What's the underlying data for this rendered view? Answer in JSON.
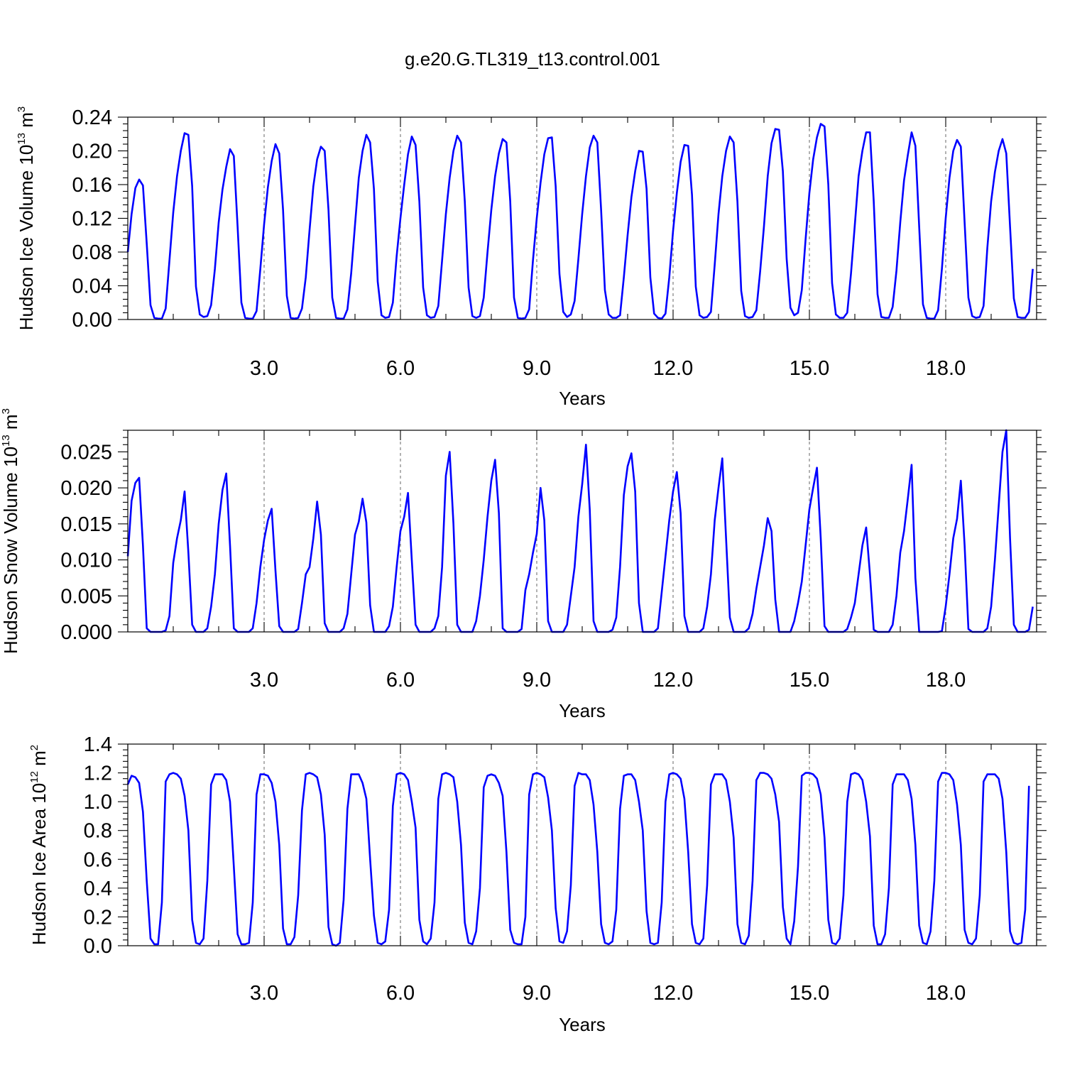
{
  "title": "g.e20.G.TL319_t13.control.001",
  "chart_data": [
    {
      "type": "line",
      "xlabel": "Years",
      "ylabel": {
        "text": "Hudson Ice Volume 10",
        "exp": "13",
        "unit": " m",
        "unit_exp": "3"
      },
      "xlim": [
        0.0,
        20.0
      ],
      "ylim": [
        0.0,
        0.24
      ],
      "xticks": [
        3.0,
        6.0,
        9.0,
        12.0,
        15.0,
        18.0
      ],
      "xtick_labels": [
        "3.0",
        "6.0",
        "9.0",
        "12.0",
        "15.0",
        "18.0"
      ],
      "yticks": [
        0.0,
        0.04,
        0.08,
        0.12,
        0.16,
        0.2,
        0.24
      ],
      "ytick_labels": [
        "0.00",
        "0.04",
        "0.08",
        "0.12",
        "0.16",
        "0.20",
        "0.24"
      ],
      "grid": "dashed vertical at major x ticks",
      "series_color": "#0000ff",
      "x_step": 0.08333,
      "values": [
        0.08,
        0.125,
        0.156,
        0.166,
        0.159,
        0.09,
        0.017,
        0.002,
        0.001,
        0.001,
        0.013,
        0.07,
        0.127,
        0.17,
        0.2,
        0.221,
        0.219,
        0.158,
        0.039,
        0.006,
        0.003,
        0.004,
        0.017,
        0.06,
        0.115,
        0.154,
        0.181,
        0.202,
        0.194,
        0.11,
        0.02,
        0.002,
        0.001,
        0.001,
        0.01,
        0.06,
        0.113,
        0.157,
        0.188,
        0.208,
        0.197,
        0.13,
        0.028,
        0.002,
        0.001,
        0.002,
        0.013,
        0.05,
        0.106,
        0.158,
        0.19,
        0.205,
        0.2,
        0.13,
        0.026,
        0.002,
        0.001,
        0.001,
        0.012,
        0.055,
        0.112,
        0.168,
        0.2,
        0.219,
        0.21,
        0.155,
        0.045,
        0.005,
        0.002,
        0.003,
        0.02,
        0.075,
        0.12,
        0.16,
        0.196,
        0.217,
        0.207,
        0.14,
        0.038,
        0.005,
        0.002,
        0.003,
        0.016,
        0.07,
        0.125,
        0.168,
        0.2,
        0.218,
        0.21,
        0.14,
        0.038,
        0.004,
        0.002,
        0.004,
        0.026,
        0.08,
        0.13,
        0.17,
        0.197,
        0.214,
        0.21,
        0.14,
        0.026,
        0.002,
        0.001,
        0.002,
        0.012,
        0.07,
        0.12,
        0.162,
        0.196,
        0.215,
        0.216,
        0.158,
        0.054,
        0.009,
        0.003,
        0.006,
        0.022,
        0.072,
        0.125,
        0.17,
        0.204,
        0.218,
        0.21,
        0.13,
        0.035,
        0.006,
        0.002,
        0.002,
        0.005,
        0.05,
        0.1,
        0.145,
        0.176,
        0.2,
        0.199,
        0.155,
        0.05,
        0.007,
        0.002,
        0.001,
        0.007,
        0.05,
        0.105,
        0.15,
        0.187,
        0.207,
        0.206,
        0.148,
        0.039,
        0.005,
        0.002,
        0.003,
        0.009,
        0.065,
        0.125,
        0.17,
        0.2,
        0.217,
        0.21,
        0.14,
        0.034,
        0.004,
        0.002,
        0.003,
        0.011,
        0.057,
        0.11,
        0.17,
        0.209,
        0.226,
        0.225,
        0.176,
        0.072,
        0.014,
        0.005,
        0.008,
        0.035,
        0.095,
        0.15,
        0.19,
        0.216,
        0.232,
        0.229,
        0.16,
        0.043,
        0.006,
        0.002,
        0.002,
        0.008,
        0.055,
        0.112,
        0.17,
        0.2,
        0.222,
        0.222,
        0.14,
        0.03,
        0.003,
        0.002,
        0.002,
        0.015,
        0.058,
        0.115,
        0.165,
        0.195,
        0.222,
        0.206,
        0.11,
        0.018,
        0.002,
        0.001,
        0.001,
        0.011,
        0.06,
        0.12,
        0.168,
        0.2,
        0.213,
        0.205,
        0.115,
        0.026,
        0.004,
        0.002,
        0.003,
        0.016,
        0.085,
        0.14,
        0.175,
        0.2,
        0.214,
        0.197,
        0.11,
        0.025,
        0.003,
        0.002,
        0.002,
        0.009,
        0.06
      ]
    },
    {
      "type": "line",
      "xlabel": "Years",
      "ylabel": {
        "text": "Hudson Snow Volume 10",
        "exp": "13",
        "unit": " m",
        "unit_exp": "3"
      },
      "xlim": [
        0.0,
        20.0
      ],
      "ylim": [
        0.0,
        0.028
      ],
      "xticks": [
        3.0,
        6.0,
        9.0,
        12.0,
        15.0,
        18.0
      ],
      "xtick_labels": [
        "3.0",
        "6.0",
        "9.0",
        "12.0",
        "15.0",
        "18.0"
      ],
      "yticks": [
        0.0,
        0.005,
        0.01,
        0.015,
        0.02,
        0.025
      ],
      "ytick_labels": [
        "0.000",
        "0.005",
        "0.010",
        "0.015",
        "0.020",
        "0.025"
      ],
      "grid": "dashed vertical at major x ticks",
      "series_color": "#0000ff",
      "x_step": 0.08333,
      "values": [
        0.0105,
        0.0182,
        0.0207,
        0.0214,
        0.012,
        0.0005,
        0.0,
        0.0,
        0.0,
        0.0,
        0.0002,
        0.0022,
        0.0096,
        0.013,
        0.0155,
        0.0195,
        0.011,
        0.001,
        0.0,
        0.0,
        0.0,
        0.0005,
        0.0035,
        0.008,
        0.015,
        0.0197,
        0.022,
        0.012,
        0.0005,
        0.0,
        0.0,
        0.0,
        0.0,
        0.0005,
        0.004,
        0.009,
        0.0128,
        0.0155,
        0.0171,
        0.0085,
        0.0008,
        0.0,
        0.0,
        0.0,
        0.0,
        0.0004,
        0.004,
        0.008,
        0.009,
        0.013,
        0.0181,
        0.0135,
        0.0012,
        0.0,
        0.0,
        0.0,
        0.0,
        0.0005,
        0.0025,
        0.008,
        0.0135,
        0.0153,
        0.0185,
        0.0152,
        0.0037,
        0.0,
        0.0,
        0.0,
        0.0,
        0.0008,
        0.0035,
        0.009,
        0.014,
        0.016,
        0.0193,
        0.01,
        0.001,
        0.0,
        0.0,
        0.0,
        0.0,
        0.0005,
        0.0022,
        0.009,
        0.0217,
        0.025,
        0.015,
        0.001,
        0.0,
        0.0,
        0.0,
        0.0,
        0.0015,
        0.005,
        0.01,
        0.016,
        0.021,
        0.0239,
        0.0165,
        0.0005,
        0.0,
        0.0,
        0.0,
        0.0,
        0.0004,
        0.0058,
        0.008,
        0.011,
        0.0136,
        0.02,
        0.0155,
        0.0015,
        0.0,
        0.0,
        0.0,
        0.0,
        0.001,
        0.005,
        0.009,
        0.016,
        0.0205,
        0.026,
        0.017,
        0.0015,
        0.0,
        0.0,
        0.0,
        0.0,
        0.0003,
        0.002,
        0.009,
        0.019,
        0.023,
        0.0248,
        0.0195,
        0.004,
        0.0,
        0.0,
        0.0,
        0.0,
        0.0005,
        0.0055,
        0.0105,
        0.0155,
        0.0195,
        0.0222,
        0.0165,
        0.0022,
        0.0,
        0.0,
        0.0,
        0.0,
        0.0005,
        0.0035,
        0.008,
        0.0155,
        0.02,
        0.0241,
        0.013,
        0.002,
        0.0,
        0.0,
        0.0,
        0.0,
        0.0005,
        0.0025,
        0.006,
        0.009,
        0.012,
        0.0158,
        0.014,
        0.0045,
        0.0,
        0.0,
        0.0,
        0.0,
        0.0015,
        0.004,
        0.007,
        0.012,
        0.017,
        0.02,
        0.0228,
        0.013,
        0.0008,
        0.0,
        0.0,
        0.0,
        0.0,
        0.0,
        0.0004,
        0.002,
        0.004,
        0.008,
        0.012,
        0.0145,
        0.008,
        0.0003,
        0.0,
        0.0,
        0.0,
        0.0,
        0.001,
        0.005,
        0.011,
        0.014,
        0.0185,
        0.0232,
        0.0075,
        0.0,
        0.0,
        0.0,
        0.0,
        0.0,
        0.0,
        0.0001,
        0.0035,
        0.008,
        0.013,
        0.0157,
        0.021,
        0.012,
        0.0004,
        0.0,
        0.0,
        0.0,
        0.0,
        0.0005,
        0.0035,
        0.01,
        0.0175,
        0.025,
        0.028,
        0.013,
        0.001,
        0.0,
        0.0,
        0.0,
        0.0003,
        0.0035
      ]
    },
    {
      "type": "line",
      "xlabel": "Years",
      "ylabel": {
        "text": "Hudson Ice Area 10",
        "exp": "12",
        "unit": " m",
        "unit_exp": "2"
      },
      "xlim": [
        0.0,
        20.0
      ],
      "ylim": [
        0.0,
        1.4
      ],
      "xticks": [
        3.0,
        6.0,
        9.0,
        12.0,
        15.0,
        18.0
      ],
      "xtick_labels": [
        "3.0",
        "6.0",
        "9.0",
        "12.0",
        "15.0",
        "18.0"
      ],
      "yticks": [
        0.0,
        0.2,
        0.4,
        0.6,
        0.8,
        1.0,
        1.2,
        1.4
      ],
      "ytick_labels": [
        "0.0",
        "0.2",
        "0.4",
        "0.6",
        "0.8",
        "1.0",
        "1.2",
        "1.4"
      ],
      "grid": "dashed vertical at major x ticks",
      "series_color": "#0000ff",
      "x_step": 0.08333,
      "values": [
        1.12,
        1.18,
        1.17,
        1.13,
        0.93,
        0.45,
        0.05,
        0.01,
        0.01,
        0.3,
        1.14,
        1.19,
        1.2,
        1.19,
        1.16,
        1.04,
        0.8,
        0.18,
        0.02,
        0.01,
        0.05,
        0.45,
        1.12,
        1.19,
        1.19,
        1.19,
        1.15,
        1.0,
        0.55,
        0.08,
        0.01,
        0.01,
        0.02,
        0.3,
        1.05,
        1.19,
        1.19,
        1.18,
        1.13,
        1.0,
        0.7,
        0.12,
        0.01,
        0.01,
        0.06,
        0.35,
        0.94,
        1.19,
        1.2,
        1.19,
        1.17,
        1.05,
        0.77,
        0.13,
        0.01,
        0.0,
        0.02,
        0.32,
        0.95,
        1.19,
        1.19,
        1.19,
        1.13,
        1.02,
        0.6,
        0.21,
        0.02,
        0.01,
        0.03,
        0.25,
        0.97,
        1.19,
        1.2,
        1.19,
        1.15,
        1.0,
        0.82,
        0.18,
        0.03,
        0.01,
        0.05,
        0.3,
        1.02,
        1.19,
        1.2,
        1.19,
        1.17,
        1.0,
        0.7,
        0.16,
        0.02,
        0.01,
        0.1,
        0.4,
        1.1,
        1.18,
        1.19,
        1.18,
        1.13,
        1.04,
        0.65,
        0.11,
        0.02,
        0.01,
        0.01,
        0.2,
        1.05,
        1.19,
        1.2,
        1.19,
        1.17,
        1.03,
        0.8,
        0.26,
        0.03,
        0.02,
        0.1,
        0.42,
        1.11,
        1.2,
        1.19,
        1.19,
        1.15,
        0.98,
        0.65,
        0.15,
        0.02,
        0.01,
        0.03,
        0.25,
        0.95,
        1.18,
        1.19,
        1.19,
        1.15,
        1.0,
        0.8,
        0.24,
        0.02,
        0.01,
        0.02,
        0.3,
        1.0,
        1.19,
        1.2,
        1.19,
        1.16,
        1.02,
        0.65,
        0.15,
        0.02,
        0.01,
        0.05,
        0.42,
        1.12,
        1.19,
        1.19,
        1.19,
        1.15,
        1.0,
        0.75,
        0.15,
        0.02,
        0.01,
        0.07,
        0.45,
        1.15,
        1.2,
        1.2,
        1.19,
        1.16,
        1.05,
        0.86,
        0.27,
        0.05,
        0.01,
        0.17,
        0.55,
        1.18,
        1.2,
        1.2,
        1.19,
        1.16,
        1.05,
        0.75,
        0.18,
        0.02,
        0.01,
        0.05,
        0.35,
        1.0,
        1.19,
        1.2,
        1.19,
        1.15,
        1.0,
        0.76,
        0.14,
        0.01,
        0.01,
        0.08,
        0.4,
        1.12,
        1.19,
        1.19,
        1.19,
        1.15,
        1.02,
        0.7,
        0.14,
        0.02,
        0.01,
        0.1,
        0.45,
        1.14,
        1.2,
        1.2,
        1.19,
        1.15,
        0.98,
        0.7,
        0.11,
        0.02,
        0.01,
        0.05,
        0.35,
        1.14,
        1.19,
        1.19,
        1.19,
        1.16,
        1.02,
        0.65,
        0.1,
        0.02,
        0.01,
        0.02,
        0.25,
        1.11
      ]
    }
  ]
}
